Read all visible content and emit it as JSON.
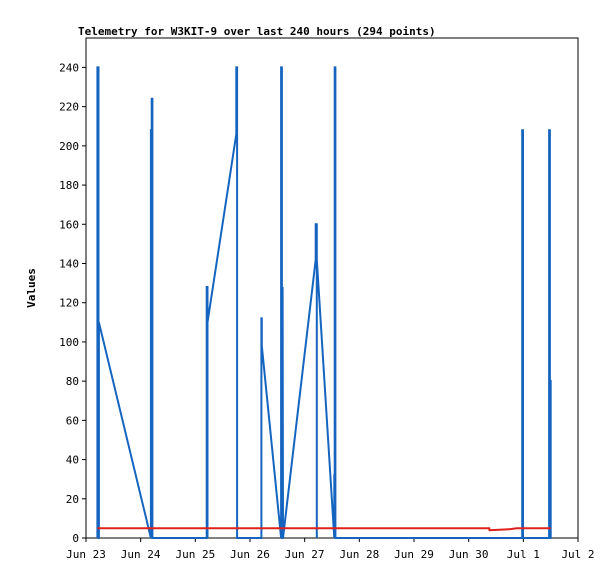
{
  "chart_data": {
    "type": "line",
    "title": "Telemetry for W3KIT-9 over last 240 hours (294 points)",
    "xlabel": "",
    "ylabel": "Values",
    "ylim": [
      0,
      255
    ],
    "yticks": [
      0,
      20,
      40,
      60,
      80,
      100,
      120,
      140,
      160,
      180,
      200,
      220,
      240
    ],
    "xlim": [
      "Jun 23 00:00",
      "Jul 2 00:00"
    ],
    "xticks": [
      "Jun 23",
      "Jun 24",
      "Jun 25",
      "Jun 26",
      "Jun 27",
      "Jun 28",
      "Jun 29",
      "Jun 30",
      "Jul 1",
      "Jul 2"
    ],
    "grid": false,
    "legend": "none",
    "series": [
      {
        "color": "#1565c0",
        "points": [
          [
            "Jun 23 05:00",
            0
          ],
          [
            "Jun 23 05:00",
            240
          ],
          [
            "Jun 23 05:30",
            240
          ],
          [
            "Jun 23 05:30",
            0
          ],
          [
            "Jun 23 05:40",
            0
          ],
          [
            "Jun 23 05:40",
            110
          ],
          [
            "Jun 24 04:30",
            0
          ],
          [
            "Jun 24 04:30",
            208
          ],
          [
            "Jun 24 04:50",
            208
          ],
          [
            "Jun 24 04:50",
            224
          ],
          [
            "Jun 24 05:10",
            224
          ],
          [
            "Jun 24 05:10",
            0
          ],
          [
            "Jun 25 05:00",
            0
          ],
          [
            "Jun 25 05:00",
            128
          ],
          [
            "Jun 25 05:20",
            128
          ],
          [
            "Jun 25 05:20",
            0
          ],
          [
            "Jun 25 05:20",
            110
          ],
          [
            "Jun 25 18:00",
            206
          ],
          [
            "Jun 25 18:00",
            240
          ],
          [
            "Jun 25 18:20",
            240
          ],
          [
            "Jun 25 18:20",
            0
          ],
          [
            "Jun 26 05:00",
            0
          ],
          [
            "Jun 26 05:00",
            112
          ],
          [
            "Jun 26 05:10",
            112
          ],
          [
            "Jun 26 05:10",
            98
          ],
          [
            "Jun 26 13:40",
            0
          ],
          [
            "Jun 26 13:40",
            240
          ],
          [
            "Jun 26 14:00",
            240
          ],
          [
            "Jun 26 14:00",
            0
          ],
          [
            "Jun 26 14:20",
            0
          ],
          [
            "Jun 26 14:20",
            128
          ],
          [
            "Jun 26 14:30",
            0
          ],
          [
            "Jun 27 04:50",
            142
          ],
          [
            "Jun 27 04:50",
            160
          ],
          [
            "Jun 27 05:20",
            160
          ],
          [
            "Jun 27 05:20",
            0
          ],
          [
            "Jun 27 05:20",
            142
          ],
          [
            "Jun 27 13:00",
            0
          ],
          [
            "Jun 27 13:00",
            32
          ],
          [
            "Jun 27 13:10",
            32
          ],
          [
            "Jun 27 13:10",
            240
          ],
          [
            "Jun 27 13:30",
            240
          ],
          [
            "Jun 27 13:30",
            0
          ],
          [
            "Jun 30 23:30",
            0
          ],
          [
            "Jun 30 23:30",
            208
          ],
          [
            "Jun 30 23:50",
            208
          ],
          [
            "Jun 30 23:50",
            0
          ],
          [
            "Jul 1 11:20",
            0
          ],
          [
            "Jul 1 11:20",
            208
          ],
          [
            "Jul 1 11:40",
            208
          ],
          [
            "Jul 1 11:40",
            0
          ],
          [
            "Jul 1 11:50",
            0
          ],
          [
            "Jul 1 11:50",
            80
          ],
          [
            "Jul 1 12:00",
            80
          ],
          [
            "Jul 1 12:00",
            0
          ]
        ]
      },
      {
        "color": "#e0201b",
        "points": [
          [
            "Jun 23 05:00",
            5
          ],
          [
            "Jun 30 09:00",
            5
          ],
          [
            "Jun 30 09:10",
            4
          ],
          [
            "Jun 30 18:00",
            4.5
          ],
          [
            "Jun 30 21:00",
            5
          ],
          [
            "Jul 1 12:00",
            5
          ]
        ]
      }
    ]
  }
}
